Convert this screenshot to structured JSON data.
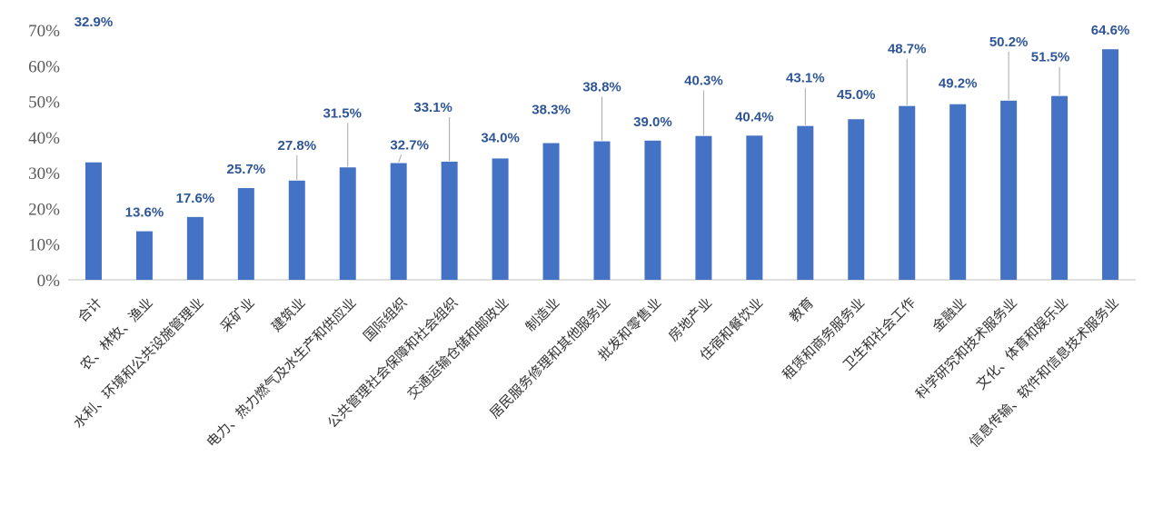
{
  "chart_data": {
    "type": "bar",
    "title": "",
    "xlabel": "",
    "ylabel": "",
    "ylim": [
      0,
      70
    ],
    "yticks": [
      "0%",
      "10%",
      "20%",
      "30%",
      "40%",
      "50%",
      "60%",
      "70%"
    ],
    "grid": false,
    "legend": "none",
    "bar_color": "#4472C4",
    "label_color": "#2E5597",
    "categories": [
      "合计",
      "农、林牧、渔业",
      "水利、环境和公共设施管理业",
      "采矿业",
      "建筑业",
      "电力、热力燃气及水生产和供应业",
      "国际组织",
      "公共管理社会保障和社会组织",
      "交通运输仓储和邮政业",
      "制造业",
      "居民服务修理和其他服务业",
      "批发和零售业",
      "房地产业",
      "住宿和餐饮业",
      "教育",
      "租赁和商务服务业",
      "卫生和社会工作",
      "金融业",
      "科学研究和技术服务业",
      "文化、体育和娱乐业",
      "信息传输、软件和信息技术服务业"
    ],
    "values": [
      32.9,
      13.6,
      17.6,
      25.7,
      27.8,
      31.5,
      32.7,
      33.1,
      34.0,
      38.3,
      38.8,
      39.0,
      40.3,
      40.4,
      43.1,
      45.0,
      48.7,
      49.2,
      50.2,
      51.5,
      64.6
    ],
    "data_labels": [
      "32.9%",
      "13.6%",
      "17.6%",
      "25.7%",
      "27.8%",
      "31.5%",
      "32.7%",
      "33.1%",
      "34.0%",
      "38.3%",
      "38.8%",
      "39.0%",
      "40.3%",
      "40.4%",
      "43.1%",
      "45.0%",
      "48.7%",
      "49.2%",
      "50.2%",
      "51.5%",
      "64.6%"
    ]
  }
}
